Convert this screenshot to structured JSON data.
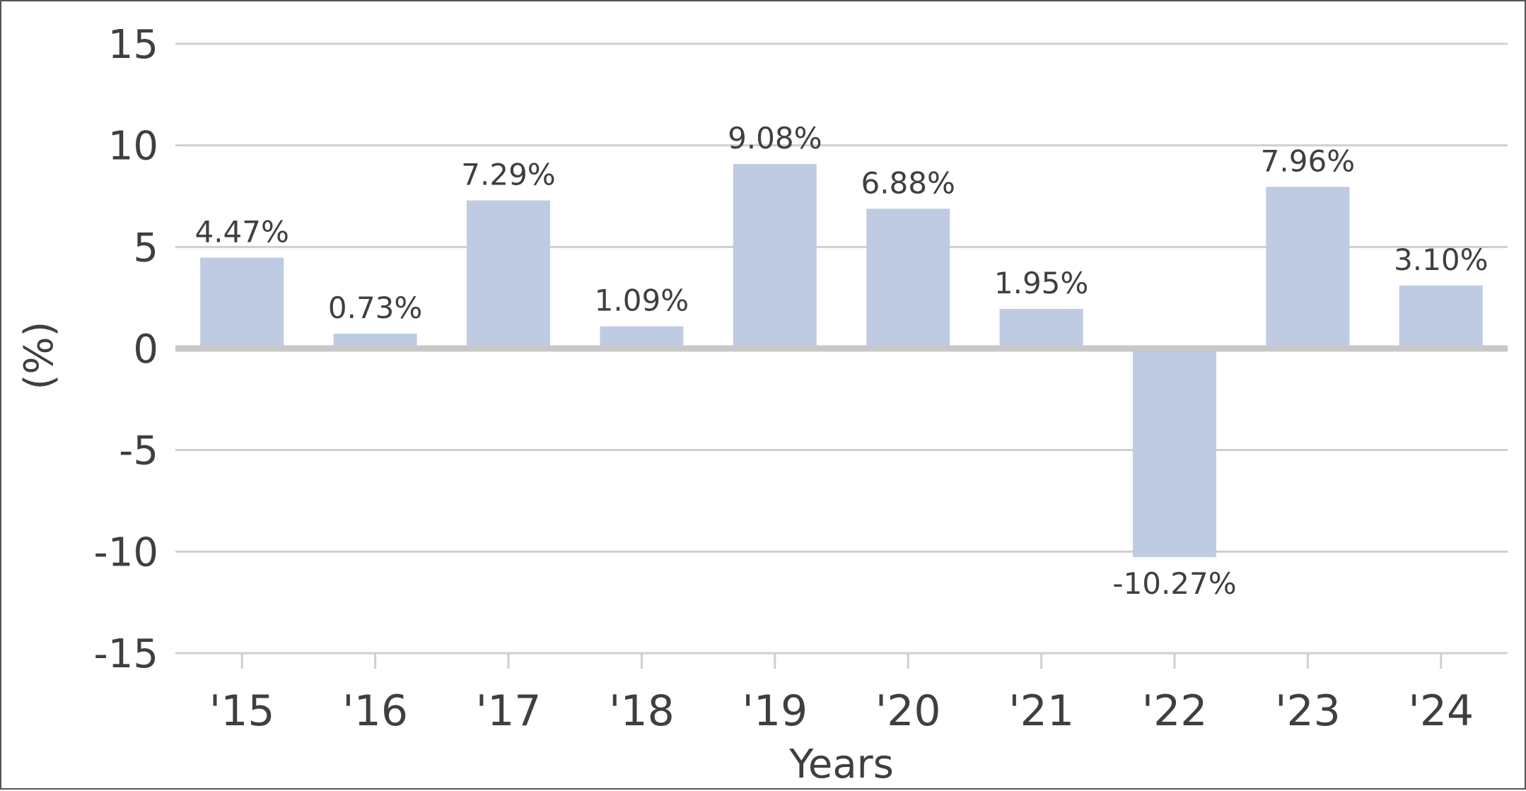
{
  "chart_data": {
    "type": "bar",
    "title": "",
    "xlabel": "Years",
    "ylabel": "(%)",
    "categories": [
      "'15",
      "'16",
      "'17",
      "'18",
      "'19",
      "'20",
      "'21",
      "'22",
      "'23",
      "'24"
    ],
    "values": [
      4.47,
      0.73,
      7.29,
      1.09,
      9.08,
      6.88,
      1.95,
      -10.27,
      7.96,
      3.1
    ],
    "value_labels": [
      "4.47%",
      "0.73%",
      "7.29%",
      "1.09%",
      "9.08%",
      "6.88%",
      "1.95%",
      "-10.27%",
      "7.96%",
      "3.10%"
    ],
    "yticks": [
      15,
      10,
      5,
      0,
      -5,
      -10,
      -15
    ],
    "ytick_labels": [
      "15",
      "10",
      "5",
      "0",
      "-5",
      "-10",
      "-15"
    ],
    "ylim": [
      -15,
      15
    ],
    "grid": true,
    "legend": false,
    "colors": {
      "bar": "#bfcbe3",
      "grid": "#cfcfcf",
      "zero_line": "#c8c8c8",
      "text": "#3f3f3f",
      "frame": "#555555"
    }
  }
}
